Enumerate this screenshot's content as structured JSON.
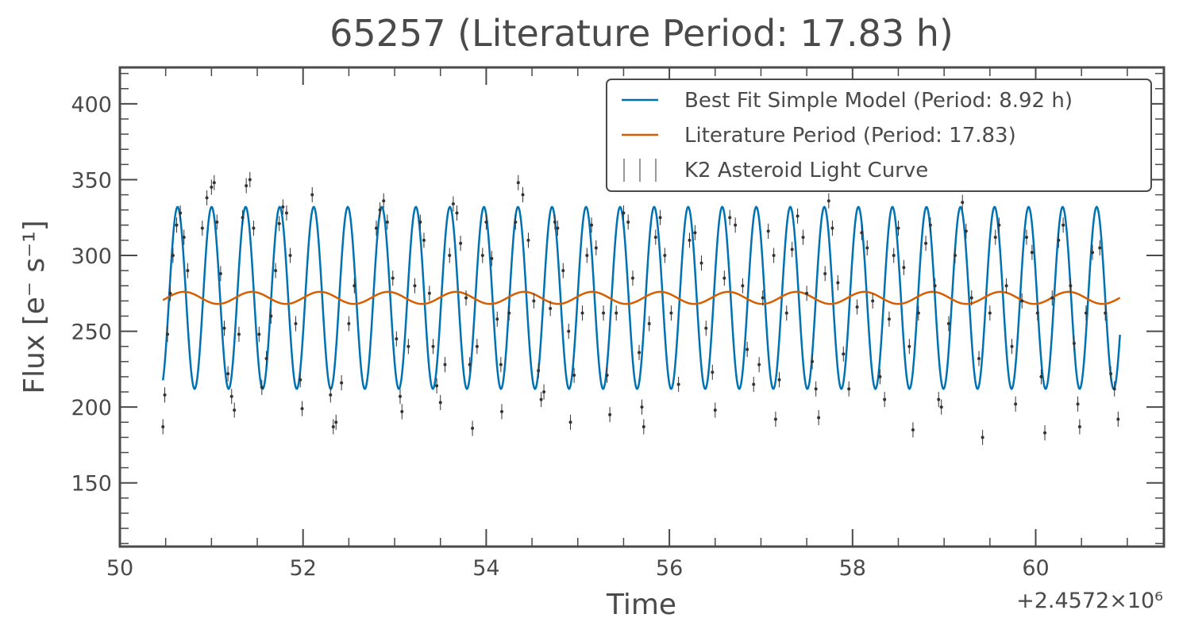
{
  "chart_data": {
    "type": "line",
    "title": "65257 (Literature Period: 17.83 h)",
    "xlabel": "Time",
    "ylabel": "Flux [e⁻ s⁻¹]",
    "x_offset_label": "+2.4572×10⁶",
    "xlim": [
      50.0,
      61.4
    ],
    "ylim": [
      108,
      424
    ],
    "x_ticks": [
      50,
      52,
      54,
      56,
      58,
      60
    ],
    "x_tick_labels": [
      "50",
      "52",
      "54",
      "56",
      "58",
      "60"
    ],
    "y_ticks": [
      150,
      200,
      250,
      300,
      350,
      400
    ],
    "y_tick_labels": [
      "150",
      "200",
      "250",
      "300",
      "350",
      "400"
    ],
    "grid": false,
    "legend_position": "top-right",
    "colors": {
      "best_fit": "#0072b2",
      "literature": "#d55e00",
      "data": "#333333",
      "axes": "#4a4a4a"
    },
    "series": [
      {
        "name": "Best Fit Simple Model (Period: 8.92 h)",
        "kind": "sinusoid",
        "mean": 272,
        "amplitude": 60,
        "period_days": 0.3717,
        "peak_time": 50.63,
        "x_range": [
          50.47,
          60.92
        ]
      },
      {
        "name": "Literature Period (Period: 17.83)",
        "kind": "sinusoid",
        "mean": 272,
        "amplitude": 4,
        "period_days": 0.743,
        "peak_time": 50.7,
        "x_range": [
          50.47,
          60.92
        ]
      },
      {
        "name": "K2 Asteroid Light Curve",
        "kind": "scatter_errorbar",
        "error": 5,
        "points": [
          [
            50.47,
            187
          ],
          [
            50.49,
            208
          ],
          [
            50.52,
            248
          ],
          [
            50.55,
            275
          ],
          [
            50.58,
            300
          ],
          [
            50.62,
            320
          ],
          [
            50.66,
            328
          ],
          [
            50.7,
            312
          ],
          [
            50.74,
            290
          ],
          [
            50.9,
            318
          ],
          [
            50.95,
            338
          ],
          [
            51.0,
            345
          ],
          [
            51.03,
            348
          ],
          [
            51.06,
            322
          ],
          [
            51.1,
            288
          ],
          [
            51.14,
            252
          ],
          [
            51.18,
            222
          ],
          [
            51.22,
            207
          ],
          [
            51.25,
            198
          ],
          [
            51.3,
            248
          ],
          [
            51.34,
            325
          ],
          [
            51.38,
            346
          ],
          [
            51.42,
            350
          ],
          [
            51.46,
            318
          ],
          [
            51.52,
            248
          ],
          [
            51.55,
            213
          ],
          [
            51.6,
            232
          ],
          [
            51.65,
            260
          ],
          [
            51.7,
            290
          ],
          [
            51.74,
            321
          ],
          [
            51.78,
            332
          ],
          [
            51.82,
            328
          ],
          [
            51.86,
            300
          ],
          [
            51.92,
            255
          ],
          [
            51.97,
            218
          ],
          [
            51.99,
            199
          ],
          [
            52.1,
            340
          ],
          [
            52.3,
            208
          ],
          [
            52.33,
            187
          ],
          [
            52.36,
            190
          ],
          [
            52.42,
            216
          ],
          [
            52.5,
            255
          ],
          [
            52.56,
            280
          ],
          [
            52.8,
            318
          ],
          [
            52.84,
            330
          ],
          [
            52.88,
            336
          ],
          [
            52.92,
            322
          ],
          [
            52.98,
            285
          ],
          [
            53.02,
            245
          ],
          [
            53.06,
            207
          ],
          [
            53.08,
            197
          ],
          [
            53.15,
            240
          ],
          [
            53.22,
            280
          ],
          [
            53.28,
            322
          ],
          [
            53.32,
            310
          ],
          [
            53.38,
            275
          ],
          [
            53.42,
            240
          ],
          [
            53.46,
            214
          ],
          [
            53.5,
            203
          ],
          [
            53.55,
            228
          ],
          [
            53.6,
            300
          ],
          [
            53.64,
            334
          ],
          [
            53.68,
            328
          ],
          [
            53.72,
            308
          ],
          [
            53.78,
            272
          ],
          [
            53.82,
            228
          ],
          [
            53.85,
            186
          ],
          [
            53.9,
            240
          ],
          [
            53.96,
            300
          ],
          [
            54.0,
            322
          ],
          [
            54.06,
            298
          ],
          [
            54.12,
            258
          ],
          [
            54.16,
            228
          ],
          [
            54.17,
            197
          ],
          [
            54.25,
            262
          ],
          [
            54.32,
            322
          ],
          [
            54.35,
            348
          ],
          [
            54.4,
            340
          ],
          [
            54.46,
            310
          ],
          [
            54.52,
            270
          ],
          [
            54.57,
            224
          ],
          [
            54.6,
            205
          ],
          [
            54.63,
            210
          ],
          [
            54.7,
            265
          ],
          [
            54.75,
            322
          ],
          [
            54.78,
            318
          ],
          [
            54.84,
            290
          ],
          [
            54.9,
            250
          ],
          [
            54.92,
            190
          ],
          [
            54.96,
            221
          ],
          [
            55.05,
            262
          ],
          [
            55.1,
            300
          ],
          [
            55.15,
            320
          ],
          [
            55.2,
            305
          ],
          [
            55.28,
            262
          ],
          [
            55.32,
            221
          ],
          [
            55.35,
            195
          ],
          [
            55.42,
            262
          ],
          [
            55.5,
            328
          ],
          [
            55.55,
            322
          ],
          [
            55.6,
            285
          ],
          [
            55.67,
            236
          ],
          [
            55.7,
            200
          ],
          [
            55.72,
            187
          ],
          [
            55.78,
            255
          ],
          [
            55.85,
            312
          ],
          [
            55.9,
            325
          ],
          [
            55.95,
            300
          ],
          [
            56.02,
            262
          ],
          [
            56.1,
            215
          ],
          [
            56.22,
            310
          ],
          [
            56.28,
            315
          ],
          [
            56.35,
            295
          ],
          [
            56.4,
            252
          ],
          [
            56.47,
            223
          ],
          [
            56.5,
            198
          ],
          [
            56.6,
            285
          ],
          [
            56.66,
            325
          ],
          [
            56.72,
            320
          ],
          [
            56.8,
            280
          ],
          [
            56.85,
            238
          ],
          [
            56.92,
            215
          ],
          [
            56.98,
            228
          ],
          [
            57.02,
            272
          ],
          [
            57.08,
            316
          ],
          [
            57.14,
            300
          ],
          [
            57.16,
            192
          ],
          [
            57.2,
            218
          ],
          [
            57.28,
            262
          ],
          [
            57.34,
            304
          ],
          [
            57.4,
            326
          ],
          [
            57.46,
            312
          ],
          [
            57.5,
            275
          ],
          [
            57.56,
            230
          ],
          [
            57.6,
            212
          ],
          [
            57.63,
            193
          ],
          [
            57.7,
            288
          ],
          [
            57.74,
            336
          ],
          [
            57.78,
            318
          ],
          [
            57.84,
            282
          ],
          [
            57.9,
            235
          ],
          [
            57.96,
            212
          ],
          [
            58.05,
            266
          ],
          [
            58.1,
            315
          ],
          [
            58.16,
            305
          ],
          [
            58.22,
            270
          ],
          [
            58.3,
            220
          ],
          [
            58.35,
            205
          ],
          [
            58.4,
            258
          ],
          [
            58.45,
            300
          ],
          [
            58.5,
            318
          ],
          [
            58.56,
            292
          ],
          [
            58.62,
            240
          ],
          [
            58.66,
            185
          ],
          [
            58.72,
            262
          ],
          [
            58.8,
            308
          ],
          [
            58.85,
            320
          ],
          [
            58.9,
            280
          ],
          [
            58.94,
            205
          ],
          [
            58.97,
            200
          ],
          [
            59.05,
            255
          ],
          [
            59.12,
            300
          ],
          [
            59.2,
            335
          ],
          [
            59.24,
            316
          ],
          [
            59.3,
            272
          ],
          [
            59.38,
            232
          ],
          [
            59.42,
            180
          ],
          [
            59.5,
            262
          ],
          [
            59.56,
            312
          ],
          [
            59.6,
            320
          ],
          [
            59.68,
            280
          ],
          [
            59.74,
            240
          ],
          [
            59.78,
            202
          ],
          [
            59.85,
            270
          ],
          [
            59.9,
            312
          ],
          [
            59.96,
            302
          ],
          [
            60.02,
            262
          ],
          [
            60.06,
            220
          ],
          [
            60.1,
            183
          ],
          [
            60.18,
            272
          ],
          [
            60.25,
            310
          ],
          [
            60.3,
            320
          ],
          [
            60.38,
            280
          ],
          [
            60.42,
            242
          ],
          [
            60.46,
            202
          ],
          [
            60.48,
            187
          ],
          [
            60.55,
            262
          ],
          [
            60.62,
            302
          ],
          [
            60.7,
            305
          ],
          [
            60.76,
            262
          ],
          [
            60.82,
            222
          ],
          [
            60.86,
            212
          ],
          [
            60.9,
            192
          ]
        ]
      }
    ]
  }
}
